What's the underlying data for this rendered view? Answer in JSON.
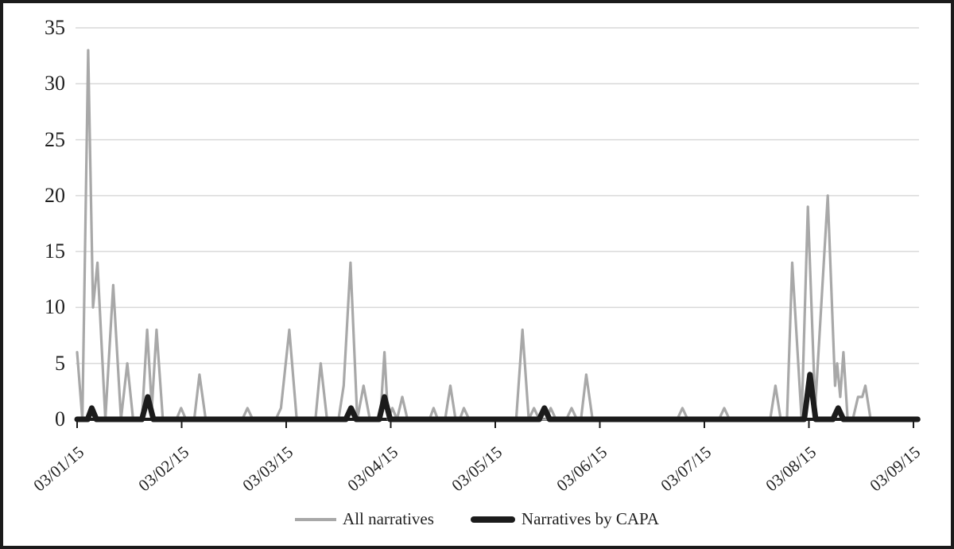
{
  "figure": {
    "type": "statistical line chart",
    "background": "#ffffff",
    "border_color": "#1b1b1b"
  },
  "chart_data": {
    "type": "line",
    "title": "",
    "xlabel": "",
    "ylabel": "",
    "x_axis": {
      "labels": [
        "03/01/15",
        "03/02/15",
        "03/03/15",
        "03/04/15",
        "03/05/15",
        "03/06/15",
        "03/07/15",
        "03/08/15",
        "03/09/15"
      ],
      "unit": "days since 03/01/15 (fractional = time of day)",
      "range_days": [
        0,
        8
      ]
    },
    "y_axis": {
      "ticks": [
        0,
        5,
        10,
        15,
        20,
        25,
        30,
        35
      ],
      "ylim": [
        0,
        35
      ]
    },
    "grid": "horizontal only",
    "legend_position": "bottom center",
    "colors": {
      "gridline": "#d9d9d9",
      "axis": "#1b1b1b"
    },
    "series": [
      {
        "name": "All narratives",
        "color": "#a8a8a8",
        "stroke_width": 3.2,
        "points": [
          [
            0.0,
            6
          ],
          [
            0.05,
            0
          ],
          [
            0.106,
            33
          ],
          [
            0.152,
            10
          ],
          [
            0.195,
            14
          ],
          [
            0.27,
            0
          ],
          [
            0.345,
            12
          ],
          [
            0.42,
            0
          ],
          [
            0.48,
            5
          ],
          [
            0.535,
            0
          ],
          [
            0.62,
            0
          ],
          [
            0.67,
            8
          ],
          [
            0.715,
            1
          ],
          [
            0.76,
            8
          ],
          [
            0.82,
            0
          ],
          [
            0.95,
            0
          ],
          [
            0.995,
            1
          ],
          [
            1.04,
            0
          ],
          [
            1.12,
            0
          ],
          [
            1.17,
            4
          ],
          [
            1.23,
            0
          ],
          [
            1.58,
            0
          ],
          [
            1.63,
            1
          ],
          [
            1.68,
            0
          ],
          [
            1.9,
            0
          ],
          [
            1.95,
            1
          ],
          [
            2.03,
            8
          ],
          [
            2.1,
            0
          ],
          [
            2.28,
            0
          ],
          [
            2.33,
            5
          ],
          [
            2.39,
            0
          ],
          [
            2.5,
            0
          ],
          [
            2.55,
            3
          ],
          [
            2.615,
            14
          ],
          [
            2.68,
            0
          ],
          [
            2.74,
            3
          ],
          [
            2.8,
            0
          ],
          [
            2.9,
            0
          ],
          [
            2.94,
            6
          ],
          [
            2.975,
            0
          ],
          [
            3.015,
            1
          ],
          [
            3.06,
            0
          ],
          [
            3.11,
            2
          ],
          [
            3.16,
            0
          ],
          [
            3.37,
            0
          ],
          [
            3.41,
            1
          ],
          [
            3.45,
            0
          ],
          [
            3.52,
            0
          ],
          [
            3.57,
            3
          ],
          [
            3.62,
            0
          ],
          [
            3.66,
            0
          ],
          [
            3.7,
            1
          ],
          [
            3.75,
            0
          ],
          [
            4.2,
            0
          ],
          [
            4.26,
            8
          ],
          [
            4.32,
            0
          ],
          [
            4.37,
            1
          ],
          [
            4.42,
            0
          ],
          [
            4.49,
            0
          ],
          [
            4.53,
            1
          ],
          [
            4.58,
            0
          ],
          [
            4.68,
            0
          ],
          [
            4.73,
            1
          ],
          [
            4.78,
            0
          ],
          [
            4.82,
            0
          ],
          [
            4.87,
            4
          ],
          [
            4.93,
            0
          ],
          [
            5.74,
            0
          ],
          [
            5.79,
            1
          ],
          [
            5.84,
            0
          ],
          [
            6.14,
            0
          ],
          [
            6.19,
            1
          ],
          [
            6.24,
            0
          ],
          [
            6.63,
            0
          ],
          [
            6.68,
            3
          ],
          [
            6.73,
            0
          ],
          [
            6.79,
            0
          ],
          [
            6.84,
            14
          ],
          [
            6.93,
            0
          ],
          [
            6.99,
            19
          ],
          [
            7.06,
            1
          ],
          [
            7.18,
            20
          ],
          [
            7.25,
            3
          ],
          [
            7.27,
            5
          ],
          [
            7.3,
            2
          ],
          [
            7.33,
            6
          ],
          [
            7.37,
            0
          ],
          [
            7.42,
            0
          ],
          [
            7.47,
            2
          ],
          [
            7.51,
            2
          ],
          [
            7.54,
            3
          ],
          [
            7.59,
            0
          ],
          [
            8.0,
            0
          ]
        ]
      },
      {
        "name": "Narratives by CAPA",
        "color": "#1b1b1b",
        "stroke_width": 7,
        "points": [
          [
            0.0,
            0
          ],
          [
            0.1,
            0
          ],
          [
            0.14,
            1
          ],
          [
            0.185,
            0
          ],
          [
            0.62,
            0
          ],
          [
            0.675,
            2
          ],
          [
            0.73,
            0
          ],
          [
            2.57,
            0
          ],
          [
            2.62,
            1
          ],
          [
            2.67,
            0
          ],
          [
            2.89,
            0
          ],
          [
            2.94,
            2
          ],
          [
            2.995,
            0
          ],
          [
            4.42,
            0
          ],
          [
            4.47,
            1
          ],
          [
            4.52,
            0
          ],
          [
            6.955,
            0
          ],
          [
            7.01,
            4
          ],
          [
            7.065,
            0
          ],
          [
            7.23,
            0
          ],
          [
            7.28,
            1
          ],
          [
            7.33,
            0
          ],
          [
            8.04,
            0
          ]
        ]
      }
    ]
  },
  "legend": {
    "items": [
      {
        "label": "All narratives",
        "swatch": "thin gray line"
      },
      {
        "label": "Narratives by CAPA",
        "swatch": "thick black line"
      }
    ]
  }
}
